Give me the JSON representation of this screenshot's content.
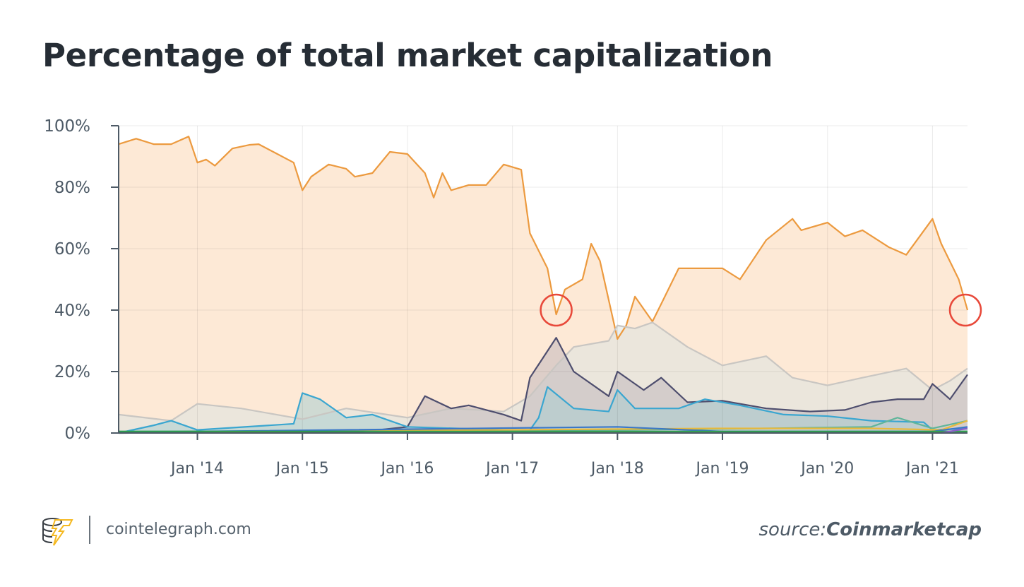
{
  "title": "Percentage of total market capitalization",
  "footer": {
    "site": "cointelegraph.com",
    "source_prefix": "source:",
    "source_name": "Coinmarketcap",
    "logo": "cointelegraph-logo"
  },
  "chart_data": {
    "type": "area",
    "title": "Percentage of total market capitalization",
    "xlabel": "",
    "ylabel": "",
    "xlim": [
      "2013-04",
      "2021-05"
    ],
    "ylim": [
      0,
      100
    ],
    "grid": true,
    "yticks": [
      {
        "v": 0,
        "label": "0%"
      },
      {
        "v": 20,
        "label": "20%"
      },
      {
        "v": 40,
        "label": "40%"
      },
      {
        "v": 60,
        "label": "60%"
      },
      {
        "v": 80,
        "label": "80%"
      },
      {
        "v": 100,
        "label": "100%"
      }
    ],
    "xticks": [
      {
        "d": "2014-01",
        "label": "Jan '14"
      },
      {
        "d": "2015-01",
        "label": "Jan '15"
      },
      {
        "d": "2016-01",
        "label": "Jan '16"
      },
      {
        "d": "2017-01",
        "label": "Jan '17"
      },
      {
        "d": "2018-01",
        "label": "Jan '18"
      },
      {
        "d": "2019-01",
        "label": "Jan '19"
      },
      {
        "d": "2020-01",
        "label": "Jan '20"
      },
      {
        "d": "2021-01",
        "label": "Jan '21"
      }
    ],
    "series": [
      {
        "color": "#ec9a3f",
        "fill": "#fde9d6",
        "points": [
          [
            "2013-04",
            94
          ],
          [
            "2013-06",
            95.8
          ],
          [
            "2013-08",
            94
          ],
          [
            "2013-10",
            94
          ],
          [
            "2013-12",
            96.5
          ],
          [
            "2014-01",
            88
          ],
          [
            "2014-02",
            89
          ],
          [
            "2014-03",
            87
          ],
          [
            "2014-05",
            92.6
          ],
          [
            "2014-07",
            93.8
          ],
          [
            "2014-08",
            94
          ],
          [
            "2014-10",
            91
          ],
          [
            "2014-12",
            88
          ],
          [
            "2015-01",
            79
          ],
          [
            "2015-02",
            83.4
          ],
          [
            "2015-04",
            87.4
          ],
          [
            "2015-06",
            86
          ],
          [
            "2015-07",
            83.4
          ],
          [
            "2015-09",
            84.6
          ],
          [
            "2015-11",
            91.5
          ],
          [
            "2016-01",
            90.8
          ],
          [
            "2016-03",
            84.6
          ],
          [
            "2016-04",
            76.6
          ],
          [
            "2016-05",
            84.6
          ],
          [
            "2016-06",
            79
          ],
          [
            "2016-08",
            80.7
          ],
          [
            "2016-10",
            80.7
          ],
          [
            "2016-12",
            87.4
          ],
          [
            "2017-02",
            85.7
          ],
          [
            "2017-03",
            65
          ],
          [
            "2017-05",
            53.6
          ],
          [
            "2017-06",
            38.6
          ],
          [
            "2017-07",
            46.7
          ],
          [
            "2017-09",
            50
          ],
          [
            "2017-10",
            61.6
          ],
          [
            "2017-11",
            56
          ],
          [
            "2018-01",
            30.6
          ],
          [
            "2018-02",
            35
          ],
          [
            "2018-03",
            44.4
          ],
          [
            "2018-05",
            36.3
          ],
          [
            "2018-06",
            42
          ],
          [
            "2018-08",
            53.6
          ],
          [
            "2018-10",
            53.6
          ],
          [
            "2019-01",
            53.6
          ],
          [
            "2019-03",
            50
          ],
          [
            "2019-06",
            62.8
          ],
          [
            "2019-09",
            69.7
          ],
          [
            "2019-10",
            66
          ],
          [
            "2020-01",
            68.5
          ],
          [
            "2020-03",
            64
          ],
          [
            "2020-05",
            66
          ],
          [
            "2020-08",
            60.5
          ],
          [
            "2020-10",
            58
          ],
          [
            "2021-01",
            69.7
          ],
          [
            "2021-02",
            61.6
          ],
          [
            "2021-04",
            50
          ],
          [
            "2021-05",
            40
          ]
        ]
      },
      {
        "color": "#c9c6c2",
        "fill": "rgba(220,228,226,0.55)",
        "points": [
          [
            "2013-04",
            6
          ],
          [
            "2013-10",
            4
          ],
          [
            "2014-01",
            9.5
          ],
          [
            "2014-06",
            8
          ],
          [
            "2015-01",
            4.5
          ],
          [
            "2015-06",
            8
          ],
          [
            "2016-01",
            5
          ],
          [
            "2016-06",
            8
          ],
          [
            "2016-12",
            7
          ],
          [
            "2017-03",
            12
          ],
          [
            "2017-06",
            22
          ],
          [
            "2017-08",
            28
          ],
          [
            "2017-12",
            30
          ],
          [
            "2018-01",
            35
          ],
          [
            "2018-03",
            34
          ],
          [
            "2018-05",
            36
          ],
          [
            "2018-09",
            28
          ],
          [
            "2019-01",
            22
          ],
          [
            "2019-06",
            25
          ],
          [
            "2019-09",
            18
          ],
          [
            "2020-01",
            15.5
          ],
          [
            "2020-05",
            18
          ],
          [
            "2020-10",
            21
          ],
          [
            "2021-01",
            14
          ],
          [
            "2021-03",
            17
          ],
          [
            "2021-05",
            21
          ]
        ]
      },
      {
        "color": "#4e4e6e",
        "fill": "rgba(190,180,185,0.5)",
        "points": [
          [
            "2013-04",
            0
          ],
          [
            "2015-08",
            0.5
          ],
          [
            "2016-01",
            2
          ],
          [
            "2016-03",
            12
          ],
          [
            "2016-06",
            8
          ],
          [
            "2016-08",
            9
          ],
          [
            "2016-12",
            6
          ],
          [
            "2017-02",
            4
          ],
          [
            "2017-03",
            18
          ],
          [
            "2017-06",
            31
          ],
          [
            "2017-08",
            20
          ],
          [
            "2017-12",
            12
          ],
          [
            "2018-01",
            20
          ],
          [
            "2018-04",
            14
          ],
          [
            "2018-06",
            18
          ],
          [
            "2018-09",
            10
          ],
          [
            "2019-01",
            10.5
          ],
          [
            "2019-06",
            8
          ],
          [
            "2019-11",
            7
          ],
          [
            "2020-03",
            7.5
          ],
          [
            "2020-06",
            10
          ],
          [
            "2020-09",
            11
          ],
          [
            "2020-12",
            11
          ],
          [
            "2021-01",
            16
          ],
          [
            "2021-03",
            11
          ],
          [
            "2021-05",
            19
          ]
        ]
      },
      {
        "color": "#3aa6d0",
        "fill": "rgba(170,205,210,0.55)",
        "points": [
          [
            "2013-04",
            0
          ],
          [
            "2013-08",
            2.5
          ],
          [
            "2013-10",
            4
          ],
          [
            "2014-01",
            1
          ],
          [
            "2014-12",
            3
          ],
          [
            "2015-01",
            13
          ],
          [
            "2015-03",
            11
          ],
          [
            "2015-06",
            5
          ],
          [
            "2015-09",
            6
          ],
          [
            "2016-01",
            2
          ],
          [
            "2016-12",
            1
          ],
          [
            "2017-03",
            1
          ],
          [
            "2017-04",
            5
          ],
          [
            "2017-05",
            15
          ],
          [
            "2017-08",
            8
          ],
          [
            "2017-12",
            7
          ],
          [
            "2018-01",
            14
          ],
          [
            "2018-03",
            8
          ],
          [
            "2018-08",
            8
          ],
          [
            "2018-11",
            11
          ],
          [
            "2019-03",
            9
          ],
          [
            "2019-08",
            6
          ],
          [
            "2020-01",
            5.5
          ],
          [
            "2020-06",
            4
          ],
          [
            "2020-12",
            3.5
          ],
          [
            "2021-01",
            1
          ],
          [
            "2021-05",
            1.5
          ]
        ]
      },
      {
        "color": "#5fb59a",
        "fill": "none",
        "points": [
          [
            "2013-04",
            0.5
          ],
          [
            "2018-01",
            1
          ],
          [
            "2019-06",
            1.5
          ],
          [
            "2020-06",
            2
          ],
          [
            "2020-09",
            5
          ],
          [
            "2021-01",
            1.5
          ],
          [
            "2021-05",
            4
          ]
        ]
      },
      {
        "color": "#e8b93c",
        "fill": "none",
        "points": [
          [
            "2013-04",
            0.2
          ],
          [
            "2019-01",
            1.5
          ],
          [
            "2020-06",
            1.5
          ],
          [
            "2021-02",
            1
          ],
          [
            "2021-05",
            4
          ]
        ]
      },
      {
        "color": "#3b78c8",
        "fill": "none",
        "points": [
          [
            "2013-04",
            0.2
          ],
          [
            "2018-01",
            2
          ],
          [
            "2019-01",
            0.5
          ],
          [
            "2021-01",
            0.5
          ],
          [
            "2021-05",
            2
          ]
        ]
      },
      {
        "color": "#2e9a4a",
        "fill": "none",
        "points": [
          [
            "2013-04",
            0.5
          ],
          [
            "2016-01",
            0.5
          ],
          [
            "2021-05",
            0.5
          ]
        ]
      },
      {
        "color": "#8a5cc8",
        "fill": "none",
        "points": [
          [
            "2021-02",
            0
          ],
          [
            "2021-05",
            1.5
          ]
        ]
      }
    ],
    "annotations": [
      {
        "type": "circle",
        "color": "#e8493a",
        "at": [
          "2017-06",
          40
        ]
      },
      {
        "type": "circle",
        "color": "#e8493a",
        "at": [
          "2021-05",
          40
        ]
      }
    ]
  }
}
